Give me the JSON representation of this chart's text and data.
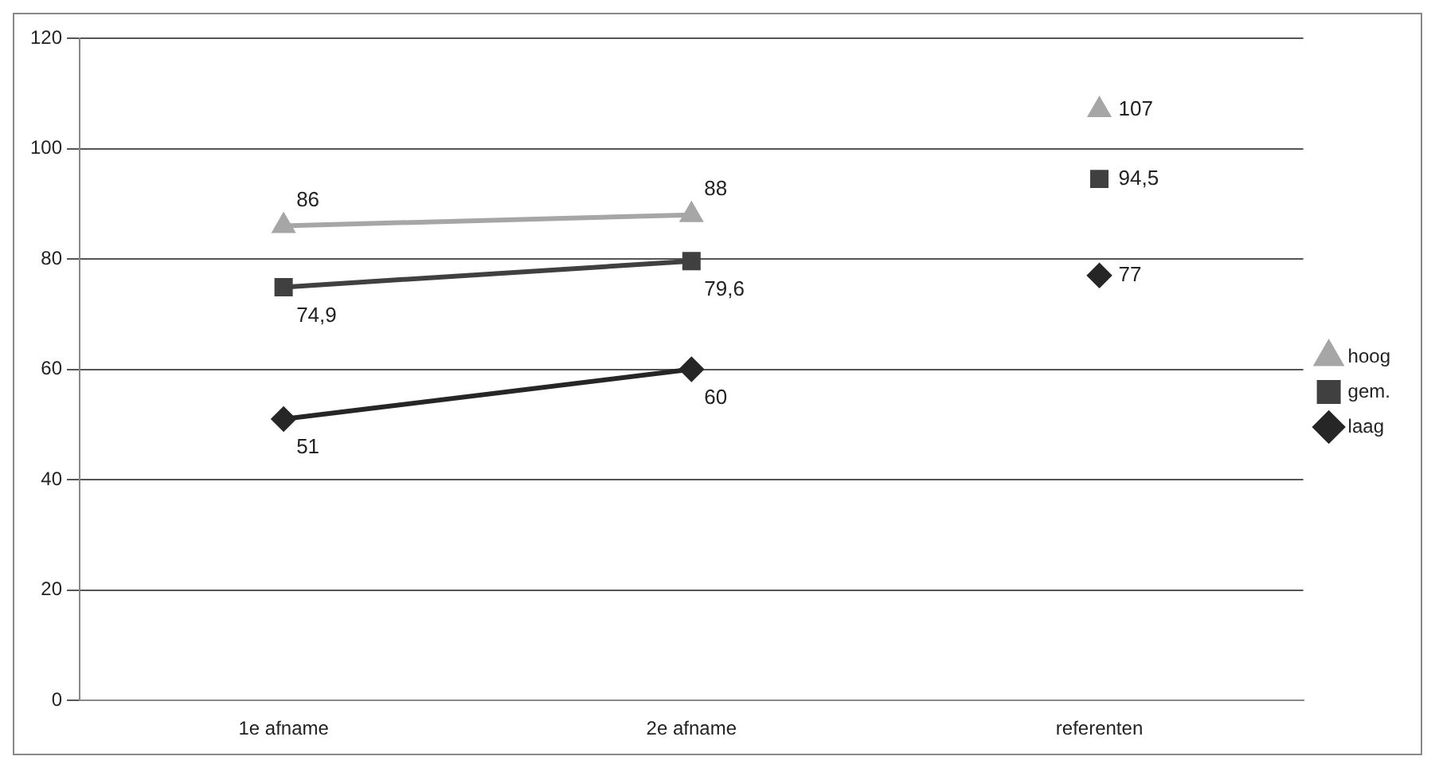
{
  "chart_data": {
    "type": "line",
    "categories": [
      "1e afname",
      "2e afname",
      "referenten"
    ],
    "series": [
      {
        "name": "hoog",
        "color": "#a6a6a6",
        "marker": "triangle",
        "values": [
          86,
          88,
          null
        ],
        "value_labels": [
          "86",
          "88",
          null
        ]
      },
      {
        "name": "gem.",
        "color": "#404040",
        "marker": "square",
        "values": [
          74.9,
          79.6,
          null
        ],
        "value_labels": [
          "74,9",
          "79,6",
          null
        ]
      },
      {
        "name": "laag",
        "color": "#262626",
        "marker": "diamond",
        "values": [
          51,
          60,
          null
        ],
        "value_labels": [
          "51",
          "60",
          null
        ]
      },
      {
        "type": "scatter",
        "color": "#a6a6a6",
        "marker": "triangle",
        "x": [
          "referenten"
        ],
        "values": [
          107
        ],
        "value_labels": [
          "107"
        ]
      },
      {
        "type": "scatter",
        "color": "#404040",
        "marker": "square",
        "x": [
          "referenten"
        ],
        "values": [
          94.5
        ],
        "value_labels": [
          "94,5"
        ]
      },
      {
        "type": "scatter",
        "color": "#262626",
        "marker": "diamond",
        "x": [
          "referenten"
        ],
        "values": [
          77
        ],
        "value_labels": [
          "77"
        ]
      }
    ],
    "ylim": [
      0,
      120
    ],
    "yticks": [
      0,
      20,
      40,
      60,
      80,
      100,
      120
    ],
    "grid": "y",
    "legend": "right",
    "line_style": "solid"
  }
}
